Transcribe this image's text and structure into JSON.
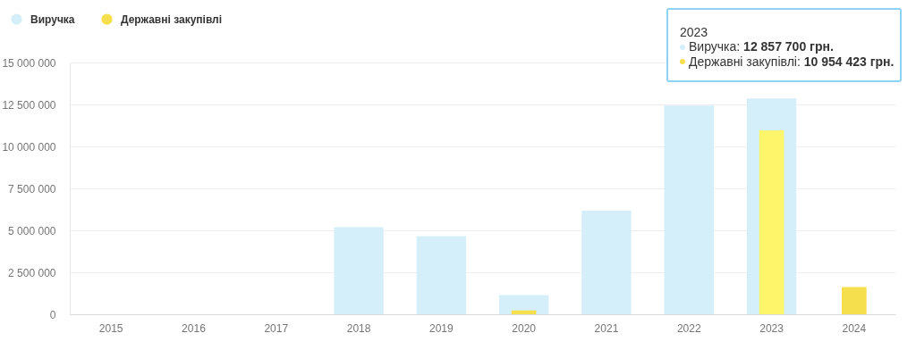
{
  "chart_data": {
    "type": "bar",
    "categories": [
      "2015",
      "2016",
      "2017",
      "2018",
      "2019",
      "2020",
      "2021",
      "2022",
      "2023",
      "2024"
    ],
    "series": [
      {
        "name": "Виручка",
        "color": "#d4eefa",
        "values": [
          null,
          null,
          null,
          5180000,
          4650000,
          1150000,
          6170000,
          12430000,
          12857700,
          null
        ]
      },
      {
        "name": "Державні закупівлі",
        "color": "#f5df4d",
        "colors": [
          "#f5df4d",
          "#f5df4d",
          "#f5df4d",
          "#f5df4d",
          "#f5df4d",
          "#f5df4d",
          "#f5df4d",
          "#f5df4d",
          "#fff56a",
          "#f5df4d"
        ],
        "values": [
          null,
          null,
          null,
          null,
          null,
          230000,
          null,
          null,
          10954423,
          1620000
        ]
      }
    ],
    "ylim": [
      0,
      15000000
    ],
    "yticks": [
      0,
      {
        "value": 2500000,
        "label": "2 500 000"
      },
      {
        "value": 5000000,
        "label": "5 000 000"
      },
      {
        "value": 7500000,
        "label": "7 500 000"
      },
      {
        "value": 10000000,
        "label": "10 000 000"
      },
      {
        "value": 12500000,
        "label": "12 500 000"
      },
      {
        "value": 15000000,
        "label": "15 000 000"
      }
    ],
    "grid": "y",
    "legend": "top left",
    "annotations": [
      "2023",
      "Виручка: 12 857 700 грн.",
      "Державні закупівлі: 10 954 423 грн."
    ]
  }
}
